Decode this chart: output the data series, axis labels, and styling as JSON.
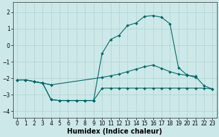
{
  "background_color": "#cce8e8",
  "grid_color": "#aacccc",
  "line_color": "#006666",
  "marker_style": "D",
  "marker_size": 2,
  "xlabel": "Humidex (Indice chaleur)",
  "xlabel_fontsize": 7,
  "xlim": [
    -0.5,
    23.5
  ],
  "ylim": [
    -4.4,
    2.6
  ],
  "xticks": [
    0,
    1,
    2,
    3,
    4,
    5,
    6,
    7,
    8,
    9,
    10,
    11,
    12,
    13,
    14,
    15,
    16,
    17,
    18,
    19,
    20,
    21,
    22,
    23
  ],
  "yticks": [
    -4,
    -3,
    -2,
    -1,
    0,
    1,
    2
  ],
  "curves": [
    {
      "x": [
        2,
        3,
        4,
        5,
        6,
        7,
        8,
        9,
        10,
        11,
        12,
        13,
        14,
        15,
        16,
        17,
        18,
        19,
        20,
        21
      ],
      "y": [
        -2.2,
        -2.3,
        -3.3,
        -3.35,
        -3.35,
        -3.35,
        -3.35,
        -3.35,
        -0.5,
        0.35,
        0.6,
        1.2,
        1.35,
        1.75,
        1.8,
        1.7,
        1.3,
        -1.35,
        -1.8,
        -1.95
      ]
    },
    {
      "x": [
        0,
        1,
        2,
        3,
        4,
        10,
        11,
        12,
        13,
        14,
        15,
        16,
        17,
        18,
        19,
        20,
        21,
        22,
        23
      ],
      "y": [
        -2.1,
        -2.1,
        -2.2,
        -2.3,
        -2.4,
        -1.95,
        -1.85,
        -1.75,
        -1.6,
        -1.45,
        -1.3,
        -1.2,
        -1.4,
        -1.6,
        -1.75,
        -1.82,
        -1.88,
        -2.45,
        -2.65
      ]
    },
    {
      "x": [
        0,
        1,
        2,
        3,
        4,
        5,
        6,
        7,
        8,
        9,
        10,
        11,
        12,
        13,
        14,
        15,
        16,
        17,
        18,
        19,
        20,
        21,
        22,
        23
      ],
      "y": [
        -2.1,
        -2.1,
        -2.2,
        -2.3,
        -3.3,
        -3.35,
        -3.35,
        -3.35,
        -3.35,
        -3.35,
        -2.6,
        -2.6,
        -2.6,
        -2.6,
        -2.6,
        -2.6,
        -2.6,
        -2.6,
        -2.6,
        -2.6,
        -2.6,
        -2.6,
        -2.6,
        -2.65
      ]
    },
    {
      "x": [
        0,
        1,
        2,
        3,
        4
      ],
      "y": [
        -2.1,
        -2.1,
        -2.2,
        -2.3,
        -2.4
      ]
    }
  ]
}
